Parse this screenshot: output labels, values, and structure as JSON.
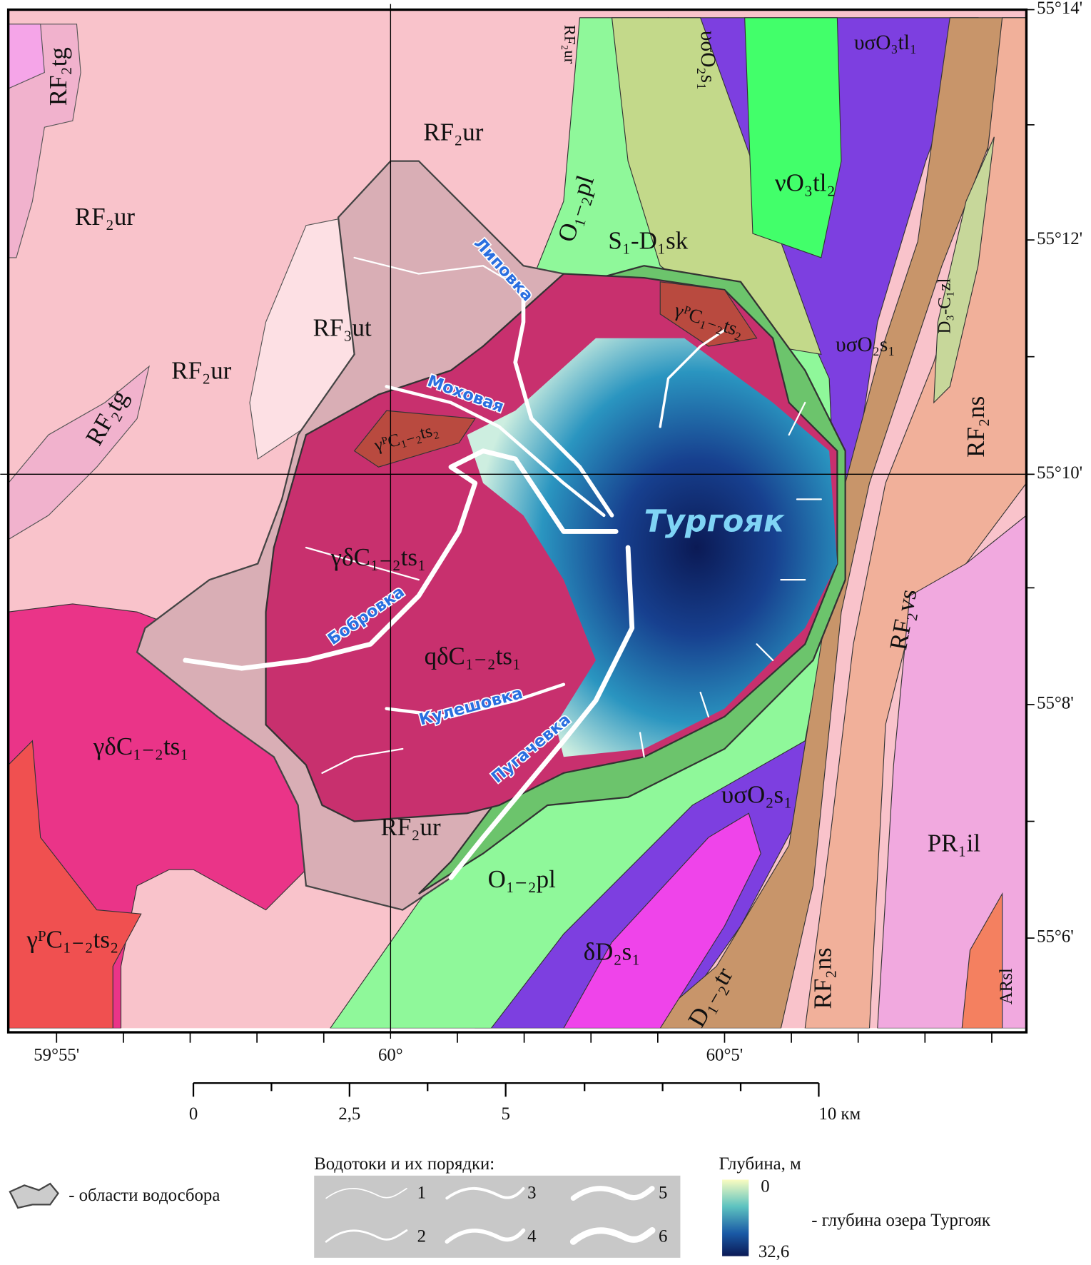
{
  "map": {
    "units": [
      "RF₂tg",
      "RF₂ur",
      "υσO₂s₁",
      "υσO₃tl₁",
      "RF₂ur",
      "RF₂ur",
      "O₁₋₂pl",
      "νO₃tl₂",
      "S₁-D₁sk",
      "RF₃ut",
      "RF₂ur",
      "γᴾC₁₋₂ts₂",
      "υσO₂s₁",
      "D₃-C₁zl",
      "RF₂tg",
      "γᴾC₁₋₂ts₂",
      "RF₂ns",
      "Тургояк",
      "γδC₁₋₂ts₁",
      "RF₂vs",
      "qδC₁₋₂ts₁",
      "γδC₁₋₂ts₁",
      "υσO₂s₁",
      "PR₁il",
      "RF₂ur",
      "O₁₋₂pl",
      "δD₂s₁",
      "γᴾC₁₋₂ts₂",
      "D₁₋₂tr",
      "RF₂ns",
      "ARsl"
    ],
    "rivers": [
      "Липовка",
      "Моховая",
      "Бобровка",
      "Кулешовка",
      "Пугачевка"
    ]
  },
  "coordinates": {
    "latitude": [
      "55°14'",
      "55°12'",
      "55°10'",
      "55°8'",
      "55°6'"
    ],
    "longitude": [
      "59°55'",
      "60°",
      "60°5'"
    ]
  },
  "scale": {
    "labels": [
      "0",
      "2,5",
      "5",
      "10 км"
    ]
  },
  "legend": {
    "watershed": "- области водосбора",
    "streams_title": "Водотоки и их порядки:",
    "stream_orders": [
      "1",
      "2",
      "3",
      "4",
      "5",
      "6"
    ],
    "depth_title": "Глубина, м",
    "depth_min": "0",
    "depth_max": "32,6",
    "depth_note": "- глубина озера Тургояк"
  }
}
